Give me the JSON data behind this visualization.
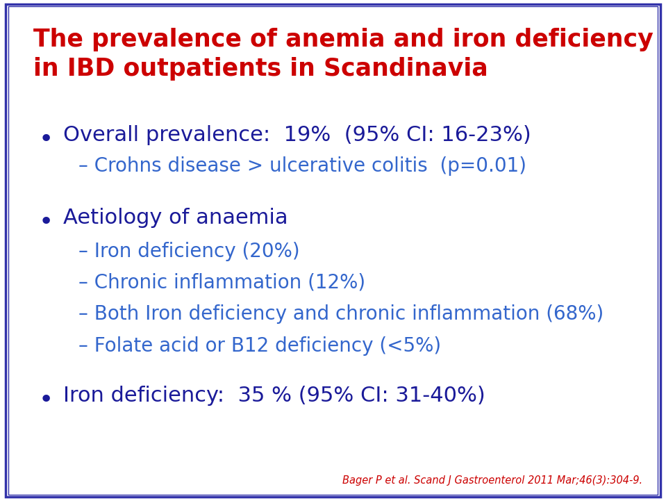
{
  "title_line1": "The prevalence of anemia and iron deficiency",
  "title_line2": "in IBD outpatients in Scandinavia",
  "title_color": "#CC0000",
  "background_color": "#FFFFFF",
  "border_color": "#3333AA",
  "bullet_color": "#1A1A99",
  "dash_color": "#3366CC",
  "bullet1_text": "Overall prevalence:  19%  (95% CI: 16-23%)",
  "dash1_text": "– Crohns disease > ulcerative colitis  (p=0.01)",
  "bullet2_text": "Aetiology of anaemia",
  "dash2a_text": "– Iron deficiency (20%)",
  "dash2b_text": "– Chronic inflammation (12%)",
  "dash2c_text": "– Both Iron deficiency and chronic inflammation (68%)",
  "dash2d_text": "– Folate acid or B12 deficiency (<5%)",
  "bullet3_text": "Iron deficiency:  35 % (95% CI: 31-40%)",
  "footnote": "Bager P et al. Scand J Gastroenterol 2011 Mar;46(3):304-9.",
  "footnote_color": "#CC0000",
  "title_fontsize": 25,
  "bullet_fontsize": 22,
  "dash_fontsize": 20,
  "footnote_fontsize": 10.5
}
